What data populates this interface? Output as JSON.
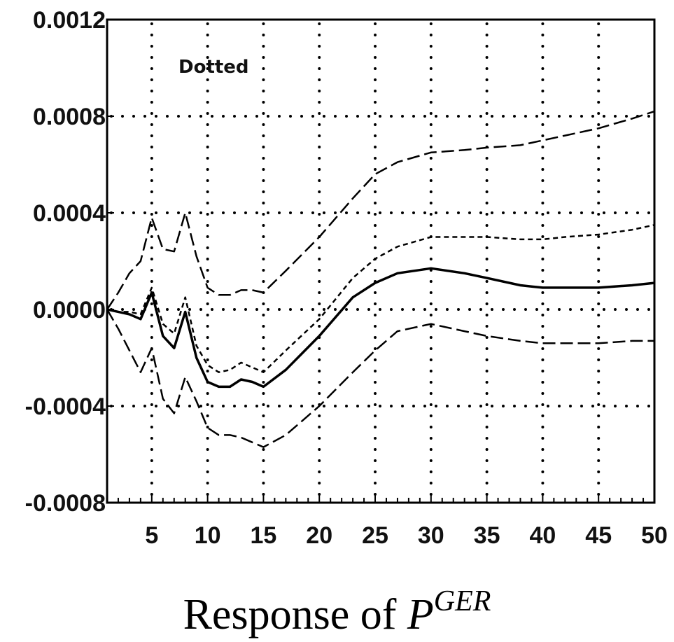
{
  "chart_data": {
    "type": "line",
    "title": "",
    "caption_prefix": "Response of",
    "caption_var": "P",
    "caption_sup": "GER",
    "annotation": "Dotted",
    "xlim": [
      1,
      50
    ],
    "ylim": [
      -0.0008,
      0.0012
    ],
    "x_ticks": [
      5,
      10,
      15,
      20,
      25,
      30,
      35,
      40,
      45,
      50
    ],
    "x_tick_labels": [
      "5",
      "10",
      "15",
      "20",
      "25",
      "30",
      "35",
      "40",
      "45",
      "50"
    ],
    "y_ticks": [
      0.0012,
      0.0008,
      0.0004,
      0.0,
      -0.0004,
      -0.0008
    ],
    "y_tick_labels": [
      "0.0012",
      "0.0008",
      "0.0004",
      "0.0000",
      "-0.0004",
      "-0.0008"
    ],
    "grid": true,
    "series": [
      {
        "style": "solid",
        "x": [
          1,
          2,
          3,
          4,
          5,
          6,
          7,
          8,
          9,
          10,
          11,
          12,
          13,
          14,
          15,
          17,
          20,
          23,
          25,
          27,
          30,
          33,
          35,
          38,
          40,
          42,
          45,
          48,
          50
        ],
        "y": [
          0.0,
          -1e-05,
          -2e-05,
          -4e-05,
          7e-05,
          -0.00011,
          -0.00016,
          -1e-05,
          -0.0002,
          -0.0003,
          -0.00032,
          -0.00032,
          -0.00029,
          -0.0003,
          -0.00032,
          -0.00025,
          -0.00011,
          5e-05,
          0.00011,
          0.00015,
          0.00017,
          0.00015,
          0.00013,
          0.0001,
          9e-05,
          9e-05,
          9e-05,
          0.0001,
          0.00011
        ]
      },
      {
        "style": "short-dash",
        "x": [
          1,
          2,
          3,
          4,
          5,
          6,
          7,
          8,
          9,
          10,
          11,
          12,
          13,
          14,
          15,
          17,
          20,
          23,
          25,
          27,
          30,
          33,
          35,
          38,
          40,
          42,
          45,
          48,
          50
        ],
        "y": [
          0.0,
          -1e-05,
          -1e-05,
          -2e-05,
          9e-05,
          -6e-05,
          -0.0001,
          5e-05,
          -0.00015,
          -0.00023,
          -0.00026,
          -0.00025,
          -0.00022,
          -0.00024,
          -0.00026,
          -0.00017,
          -4e-05,
          0.00013,
          0.00021,
          0.00026,
          0.0003,
          0.0003,
          0.0003,
          0.00029,
          0.00029,
          0.0003,
          0.00031,
          0.00033,
          0.00035
        ]
      },
      {
        "style": "long-dash",
        "x": [
          1,
          2,
          3,
          4,
          5,
          6,
          7,
          8,
          9,
          10,
          11,
          12,
          13,
          14,
          15,
          17,
          20,
          23,
          25,
          27,
          30,
          33,
          35,
          38,
          40,
          42,
          45,
          48,
          50
        ],
        "y": [
          0.0,
          7e-05,
          0.00015,
          0.0002,
          0.00038,
          0.00025,
          0.00024,
          0.0004,
          0.00022,
          9e-05,
          6e-05,
          6e-05,
          8e-05,
          8e-05,
          7e-05,
          0.00016,
          0.0003,
          0.00046,
          0.00056,
          0.00061,
          0.00065,
          0.00066,
          0.00067,
          0.00068,
          0.0007,
          0.00072,
          0.00075,
          0.00079,
          0.00082
        ]
      },
      {
        "style": "long-dash",
        "x": [
          1,
          2,
          3,
          4,
          5,
          6,
          7,
          8,
          9,
          10,
          11,
          12,
          13,
          14,
          15,
          17,
          20,
          23,
          25,
          27,
          30,
          33,
          35,
          38,
          40,
          42,
          45,
          48,
          50
        ],
        "y": [
          0.0,
          -8e-05,
          -0.00017,
          -0.00026,
          -0.00016,
          -0.00037,
          -0.00043,
          -0.00028,
          -0.00038,
          -0.00049,
          -0.00052,
          -0.00052,
          -0.00053,
          -0.00055,
          -0.00057,
          -0.00052,
          -0.0004,
          -0.00026,
          -0.00017,
          -9e-05,
          -6e-05,
          -9e-05,
          -0.00011,
          -0.00013,
          -0.00014,
          -0.00014,
          -0.00014,
          -0.00013,
          -0.00013
        ]
      }
    ]
  }
}
